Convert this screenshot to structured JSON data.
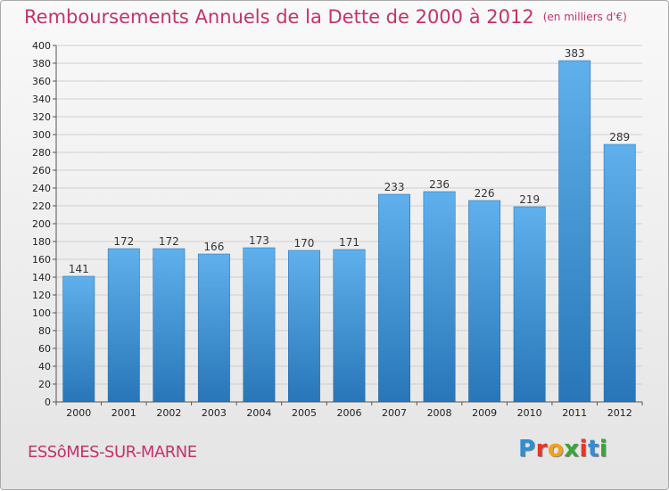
{
  "title": "Remboursements Annuels de la Dette de 2000 à 2012",
  "unit_note": "(en milliers d'€)",
  "city": "ESSôMES-SUR-MARNE",
  "logo": {
    "letters": [
      "P",
      "r",
      "o",
      "x",
      "i",
      "t",
      "i"
    ],
    "colors": [
      "#2e8fd6",
      "#e6352b",
      "#f4a21c",
      "#3aa537",
      "#e6352b",
      "#2e8fd6",
      "#3aa537"
    ]
  },
  "colors": {
    "bar_top": "#5fb0ec",
    "bar_bottom": "#2876b8",
    "title": "#c4336b"
  },
  "chart_data": {
    "type": "bar",
    "title": "Remboursements Annuels de la Dette de 2000 à 2012",
    "subtitle": "(en milliers d'€)",
    "categories": [
      "2000",
      "2001",
      "2002",
      "2003",
      "2004",
      "2005",
      "2006",
      "2007",
      "2008",
      "2009",
      "2010",
      "2011",
      "2012"
    ],
    "values": [
      141,
      172,
      172,
      166,
      173,
      170,
      171,
      233,
      236,
      226,
      219,
      383,
      289
    ],
    "ylim": [
      0,
      400
    ],
    "ytick_step": 20,
    "grid": true
  }
}
